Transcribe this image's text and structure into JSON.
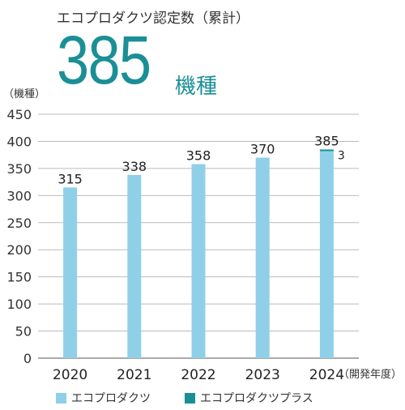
{
  "headline": "エコプロダクツ認定数（累計）",
  "total": {
    "value": "385",
    "unit": "機種"
  },
  "chart_data": {
    "type": "bar",
    "stacked": true,
    "categories": [
      "2020",
      "2021",
      "2022",
      "2023",
      "2024"
    ],
    "series": [
      {
        "name": "エコプロダクツ",
        "values": [
          315,
          338,
          358,
          370,
          382
        ],
        "color": "#8fd0e8"
      },
      {
        "name": "エコプロダクツプラス",
        "values": [
          0,
          0,
          0,
          0,
          3
        ],
        "color": "#1a8f96"
      }
    ],
    "totals": [
      315,
      338,
      358,
      370,
      385
    ],
    "total_labels": [
      "315",
      "338",
      "358",
      "370",
      "385"
    ],
    "segment_annotations": [
      {
        "category": "2024",
        "series": "エコプロダクツプラス",
        "label": "3"
      }
    ],
    "ylabel": "（機種）",
    "xlabel": "（開発年度）",
    "ylim": [
      0,
      450
    ],
    "yticks": [
      0,
      50,
      100,
      150,
      200,
      250,
      300,
      350,
      400,
      450
    ],
    "grid": true,
    "legend_position": "bottom"
  }
}
